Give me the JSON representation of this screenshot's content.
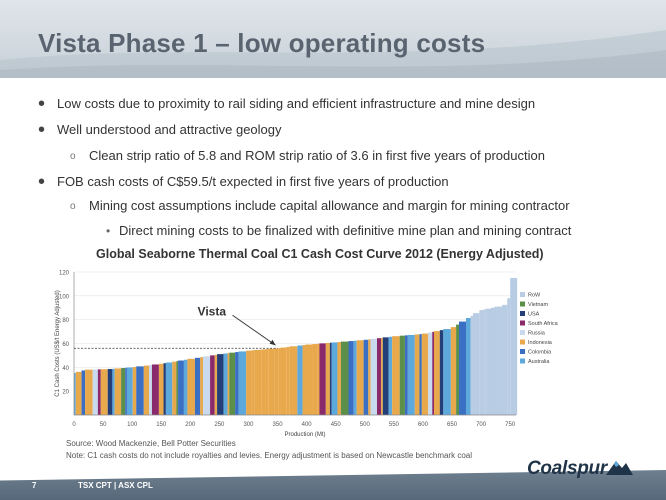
{
  "slide": {
    "title": "Vista Phase 1 – low operating costs",
    "page_number": "7",
    "ticker": "TSX CPT | ASX CPL",
    "logo_text": "Coalspur"
  },
  "bullets": [
    {
      "level": 1,
      "text": "Low costs due to proximity to rail siding and efficient infrastructure and mine design"
    },
    {
      "level": 1,
      "text": "Well understood and attractive geology"
    },
    {
      "level": 2,
      "text": "Clean strip ratio of 5.8 and ROM strip ratio of 3.6 in first five years of production"
    },
    {
      "level": 1,
      "text": "FOB cash costs of C$59.5/t expected in first five years of production"
    },
    {
      "level": 2,
      "text": "Mining cost assumptions include capital allowance and margin for mining contractor"
    },
    {
      "level": 3,
      "text": "Direct mining costs to be finalized with definitive mine plan and mining contract"
    }
  ],
  "chart_data": {
    "type": "bar",
    "title": "Global Seaborne Thermal Coal C1 Cash Cost Curve 2012 (Energy Adjusted)",
    "xlabel": "Production (Mt)",
    "ylabel": "C1 Cash Costs (US$/t Energy Adjusted)",
    "xlim": [
      0,
      760
    ],
    "ylim": [
      0,
      120
    ],
    "x_ticks": [
      0,
      50,
      100,
      150,
      200,
      250,
      300,
      350,
      400,
      450,
      500,
      550,
      600,
      650,
      700,
      750
    ],
    "y_ticks": [
      20,
      40,
      60,
      80,
      100,
      120
    ],
    "annotation": "Vista",
    "vista_cost": 56,
    "legend": [
      "RoW",
      "Vietnam",
      "USA",
      "South Africa",
      "Russia",
      "Indonesia",
      "Colombia",
      "Australia"
    ],
    "legend_position": "right",
    "colors": {
      "RoW": "#b8cce4",
      "Vietnam": "#5b8f4a",
      "USA": "#243f78",
      "South Africa": "#8b2a6b",
      "Russia": "#c9d9ee",
      "Indonesia": "#e8a84c",
      "Colombia": "#3a6fc4",
      "Australia": "#5ea9dc"
    },
    "curve_points": [
      [
        0,
        35
      ],
      [
        20,
        38
      ],
      [
        60,
        38.5
      ],
      [
        100,
        40
      ],
      [
        150,
        43
      ],
      [
        200,
        47
      ],
      [
        250,
        51
      ],
      [
        300,
        54
      ],
      [
        350,
        56
      ],
      [
        400,
        59
      ],
      [
        450,
        61
      ],
      [
        500,
        63
      ],
      [
        550,
        66
      ],
      [
        600,
        68
      ],
      [
        650,
        73
      ],
      [
        700,
        88
      ],
      [
        740,
        92
      ],
      [
        750,
        100
      ],
      [
        758,
        120
      ]
    ]
  },
  "notes": {
    "source": "Source: Wood Mackenzie, Bell Potter Securities",
    "note": "Note: C1 cash costs do not include royalties and levies. Energy adjustment is based on Newcastle benchmark coal"
  }
}
